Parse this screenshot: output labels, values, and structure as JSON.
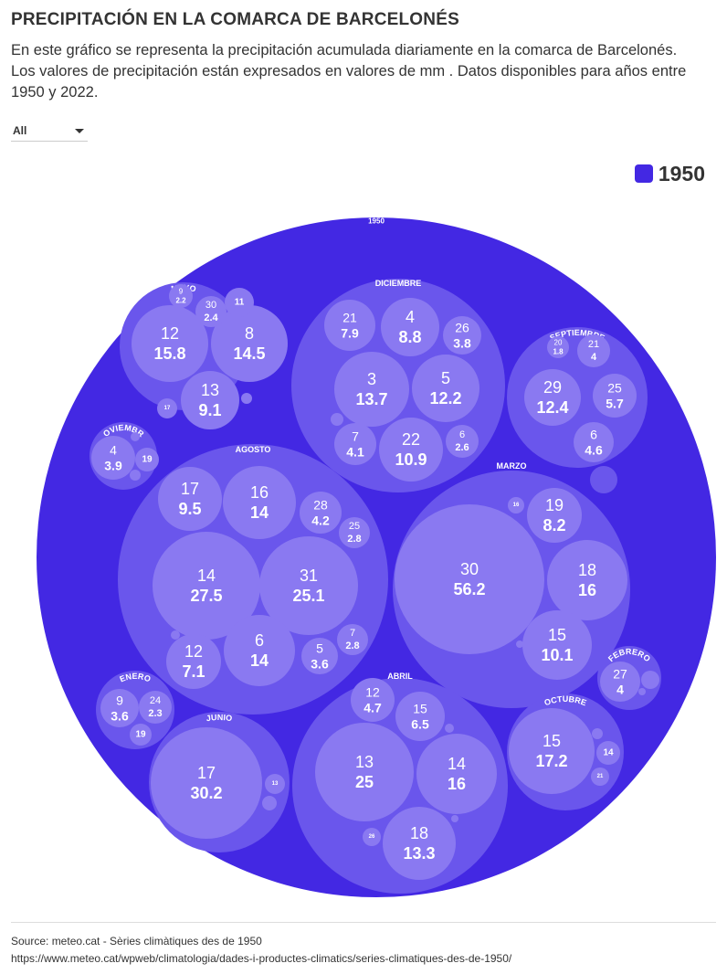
{
  "header": {
    "title": "PRECIPITACIÓN EN LA COMARCA DE BARCELONÉS",
    "subtitle": "En este gráfico se representa la precipitación acumulada diariamente en la comarca de Barcelonés. Los valores de precipitación están expresados en valores de mm . Datos disponibles para años entre 1950 y 2022."
  },
  "filter": {
    "selected": "All"
  },
  "legend": {
    "label": "1950",
    "color": "#4328e3"
  },
  "colors": {
    "root": "#4328e3",
    "group": "#6a56ec",
    "leaf": "#8a79f1",
    "text": "#ffffff"
  },
  "footer": {
    "source": "Source: meteo.cat - Sèries climàtiques des de 1950",
    "url": "https://www.meteo.cat/wpweb/climatologia/dades-i-productes-climatics/series-climatiques-des-de-1950/"
  },
  "chart_data": {
    "type": "packed-circles",
    "root": "1950",
    "groups": [
      {
        "name": "MAYO",
        "days": [
          {
            "day": 12,
            "value": 15.8
          },
          {
            "day": 8,
            "value": 14.5
          },
          {
            "day": 13,
            "value": 9.1
          },
          {
            "day": 30,
            "value": 2.4
          },
          {
            "day": 9,
            "value": 2.2
          },
          {
            "day": 11,
            "value": null
          },
          {
            "day": 17,
            "value": null
          },
          {
            "day": null,
            "value": null
          }
        ]
      },
      {
        "name": "DICIEMBRE",
        "days": [
          {
            "day": 3,
            "value": 13.7
          },
          {
            "day": 5,
            "value": 12.2
          },
          {
            "day": 22,
            "value": 10.9
          },
          {
            "day": 4,
            "value": 8.8
          },
          {
            "day": 21,
            "value": 7.9
          },
          {
            "day": 7,
            "value": 4.1
          },
          {
            "day": 26,
            "value": 3.8
          },
          {
            "day": 6,
            "value": 2.6
          },
          {
            "day": null,
            "value": null
          }
        ]
      },
      {
        "name": "SEPTIEMBRE",
        "days": [
          {
            "day": 29,
            "value": 12.4
          },
          {
            "day": 25,
            "value": 5.7
          },
          {
            "day": 6,
            "value": 4.6
          },
          {
            "day": 21,
            "value": 4
          },
          {
            "day": 20,
            "value": 1.8
          }
        ]
      },
      {
        "name": "NOVIEMBRE",
        "days": [
          {
            "day": 4,
            "value": 3.9
          },
          {
            "day": 19,
            "value": null
          },
          {
            "day": null,
            "value": null
          },
          {
            "day": null,
            "value": null
          }
        ]
      },
      {
        "name": "AGOSTO",
        "days": [
          {
            "day": 14,
            "value": 27.5
          },
          {
            "day": 31,
            "value": 25.1
          },
          {
            "day": 16,
            "value": 14
          },
          {
            "day": 6,
            "value": 14
          },
          {
            "day": 17,
            "value": 9.5
          },
          {
            "day": 12,
            "value": 7.1
          },
          {
            "day": 28,
            "value": 4.2
          },
          {
            "day": 5,
            "value": 3.6
          },
          {
            "day": 25,
            "value": 2.8
          },
          {
            "day": 7,
            "value": 2.8
          },
          {
            "day": null,
            "value": null
          }
        ]
      },
      {
        "name": "MARZO",
        "days": [
          {
            "day": 30,
            "value": 56.2
          },
          {
            "day": 18,
            "value": 16
          },
          {
            "day": 15,
            "value": 10.1
          },
          {
            "day": 19,
            "value": 8.2
          },
          {
            "day": 16,
            "value": null
          },
          {
            "day": null,
            "value": null
          }
        ]
      },
      {
        "name": "ENERO",
        "days": [
          {
            "day": 9,
            "value": 3.6
          },
          {
            "day": 24,
            "value": 2.3
          },
          {
            "day": 19,
            "value": null
          }
        ]
      },
      {
        "name": "JUNIO",
        "days": [
          {
            "day": 17,
            "value": 30.2
          },
          {
            "day": 13,
            "value": null
          },
          {
            "day": null,
            "value": null
          }
        ]
      },
      {
        "name": "ABRIL",
        "days": [
          {
            "day": 13,
            "value": 25
          },
          {
            "day": 14,
            "value": 16
          },
          {
            "day": 18,
            "value": 13.3
          },
          {
            "day": 15,
            "value": 6.5
          },
          {
            "day": 12,
            "value": 4.7
          },
          {
            "day": 26,
            "value": null
          },
          {
            "day": null,
            "value": null
          },
          {
            "day": null,
            "value": null
          }
        ]
      },
      {
        "name": "OCTUBRE",
        "days": [
          {
            "day": 15,
            "value": 17.2
          },
          {
            "day": 14,
            "value": null
          },
          {
            "day": 21,
            "value": null
          },
          {
            "day": null,
            "value": null
          }
        ]
      },
      {
        "name": "FEBRERO",
        "days": [
          {
            "day": 27,
            "value": 4
          },
          {
            "day": null,
            "value": null
          },
          {
            "day": null,
            "value": null
          }
        ]
      },
      {
        "name": "",
        "days": []
      }
    ]
  }
}
